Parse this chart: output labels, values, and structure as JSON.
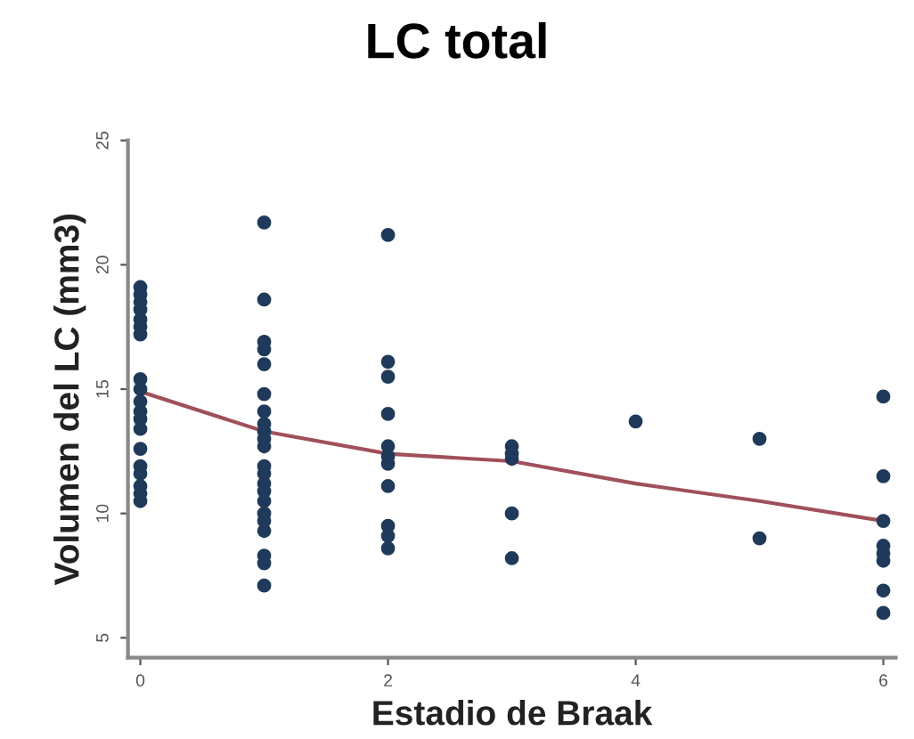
{
  "chart_data": {
    "type": "scatter",
    "title": "LC total",
    "xlabel": "Estadio de Braak",
    "ylabel": "Volumen del LC (mm3)",
    "xlim": [
      -0.1,
      6.1
    ],
    "ylim": [
      4.2,
      25
    ],
    "xticks": [
      0,
      2,
      4,
      6
    ],
    "yticks": [
      5,
      10,
      15,
      20,
      25
    ],
    "grid": false,
    "series": [
      {
        "marker": "circle",
        "color": "#1f3a5a",
        "x": [
          0,
          0,
          0,
          0,
          0,
          0,
          0,
          0,
          0,
          0,
          0,
          0,
          0,
          0,
          0,
          0,
          0,
          0,
          0,
          1,
          1,
          1,
          1,
          1,
          1,
          1,
          1,
          1,
          1,
          1,
          1,
          1,
          1,
          1,
          1,
          1,
          1,
          1,
          1,
          1,
          1,
          2,
          2,
          2,
          2,
          2,
          2,
          2,
          2,
          2,
          2,
          2,
          3,
          3,
          3,
          3,
          3,
          4,
          5,
          5,
          6,
          6,
          6,
          6,
          6,
          6,
          6,
          6
        ],
        "values": [
          19.1,
          18.8,
          18.5,
          18.2,
          17.8,
          17.5,
          17.2,
          15.4,
          15.0,
          14.5,
          14.1,
          13.8,
          13.4,
          12.6,
          11.9,
          11.6,
          11.1,
          10.8,
          10.5,
          21.7,
          18.6,
          16.9,
          16.6,
          16.0,
          14.8,
          14.1,
          13.6,
          13.3,
          13.0,
          12.7,
          11.9,
          11.6,
          11.2,
          10.9,
          10.5,
          10.0,
          9.7,
          9.3,
          8.3,
          8.0,
          7.1,
          21.2,
          16.1,
          15.5,
          14.0,
          12.7,
          12.3,
          12.0,
          11.1,
          9.5,
          9.1,
          8.6,
          12.7,
          12.4,
          12.2,
          10.0,
          8.2,
          13.7,
          13.0,
          9.0,
          14.7,
          11.5,
          9.7,
          8.7,
          8.4,
          8.1,
          6.9,
          6.0
        ]
      },
      {
        "type": "line",
        "marker": "none",
        "color": "#a0505a",
        "x": [
          0,
          1,
          2,
          3,
          4,
          5,
          6
        ],
        "values": [
          14.9,
          13.3,
          12.4,
          12.1,
          11.2,
          10.5,
          9.7
        ]
      }
    ]
  }
}
